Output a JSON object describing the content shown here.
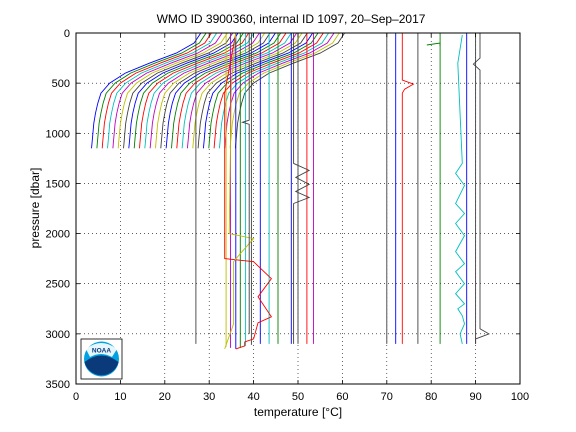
{
  "chart_data": {
    "type": "line",
    "title": "WMO ID 3900360, internal ID 1097, 20–Sep–2017",
    "xlabel": "temperature [°C]",
    "ylabel": "pressure [dbar]",
    "xlim": [
      0,
      100
    ],
    "ylim": [
      0,
      3500
    ],
    "y_reversed": true,
    "grid": true,
    "x_ticks": [
      "0",
      "10",
      "20",
      "30",
      "40",
      "50",
      "60",
      "70",
      "80",
      "90",
      "100"
    ],
    "y_ticks": [
      "0",
      "500",
      "1000",
      "1500",
      "2000",
      "2500",
      "3000",
      "3500"
    ],
    "logo_text": "NOAA",
    "curve_palette": [
      "#0000ff",
      "#008000",
      "#ff0000",
      "#00bfbf",
      "#bf00bf",
      "#bfbf00",
      "#404040"
    ],
    "shallow_profiles": {
      "count": 28,
      "start_offset": 3.5,
      "offset_step": 1.2,
      "shape_pressure": [
        0,
        100,
        200,
        300,
        400,
        500,
        600,
        700,
        800,
        900,
        1000,
        1100,
        1150
      ],
      "shape_temp": [
        28,
        26.5,
        22.5,
        16.5,
        11,
        7.5,
        5.5,
        4.8,
        4.3,
        3.9,
        3.7,
        3.5,
        3.4
      ]
    },
    "deep_profiles": [
      {
        "color": "#404040",
        "x": 27,
        "pmax": 3100
      },
      {
        "color": "#bfbf00",
        "x": 33.8,
        "pmax": 3130
      },
      {
        "color": "#bf00bf",
        "x": 34.8,
        "pmax": 3140
      },
      {
        "color": "#0000ff",
        "x": 36,
        "pmax": 3150
      },
      {
        "color": "#008000",
        "x": 37,
        "pmax": 3140
      },
      {
        "color": "#00bfbf",
        "x": 38.2,
        "pmax": 3120
      },
      {
        "color": "#404040",
        "x": 39.5,
        "pmax": 3110
      },
      {
        "color": "#0000ff",
        "x": 41.5,
        "pmax": 3100
      },
      {
        "color": "#00bfbf",
        "x": 43.5,
        "pmax": 3100
      },
      {
        "color": "#008000",
        "x": 45.5,
        "pmax": 3100
      },
      {
        "color": "#0000ff",
        "x": 48.5,
        "pmax": 3100
      },
      {
        "color": "#404040",
        "x": 50,
        "pmax": 3100
      },
      {
        "color": "#ff0000",
        "x": 52,
        "pmax": 3100
      },
      {
        "color": "#bf00bf",
        "x": 53.5,
        "pmax": 3100
      },
      {
        "color": "#404040",
        "x": 70,
        "pmax": 3100
      },
      {
        "color": "#0000ff",
        "x": 72,
        "pmax": 3100
      },
      {
        "color": "#404040",
        "x": 77,
        "pmax": 3100
      },
      {
        "color": "#008000",
        "x": 82,
        "pmax": 3100
      },
      {
        "color": "#0000ff",
        "x": 88,
        "pmax": 3100
      },
      {
        "color": "#404040",
        "x": 90,
        "pmax": 3100
      }
    ],
    "featured_profiles": [
      {
        "color": "#ff0000",
        "x": [
          36,
          33.5,
          33.5,
          40,
          44,
          41,
          44,
          41,
          40,
          38,
          38,
          36
        ],
        "p": [
          0,
          600,
          2250,
          2280,
          2450,
          2630,
          2830,
          2890,
          3050,
          3080,
          3120,
          3150
        ]
      },
      {
        "color": "#bfbf00",
        "x": [
          36,
          35,
          34.5,
          40,
          37,
          35.5,
          35.5,
          33.5
        ],
        "p": [
          0,
          500,
          2000,
          2050,
          2200,
          2280,
          2900,
          3150
        ]
      },
      {
        "color": "#404040",
        "x": [
          39,
          39,
          39,
          37.5,
          39,
          39
        ],
        "p": [
          0,
          850,
          870,
          890,
          910,
          3000
        ]
      },
      {
        "color": "#404040",
        "x": [
          49,
          49,
          52.5,
          49.5,
          52.5,
          49.5,
          52.5,
          49,
          49
        ],
        "p": [
          0,
          1300,
          1370,
          1440,
          1510,
          1580,
          1640,
          1700,
          3100
        ]
      },
      {
        "color": "#ff0000",
        "x": [
          73.5,
          73.5,
          76,
          74,
          73.5,
          73.5
        ],
        "p": [
          0,
          470,
          510,
          560,
          600,
          3100
        ]
      },
      {
        "color": "#00bfbf",
        "x": [
          87,
          86,
          87,
          85.5,
          87.5,
          85.5,
          87.5,
          85.5,
          87.5,
          85.5,
          87.5,
          85.5,
          87.5,
          85.5,
          87.5,
          86,
          87,
          87.5,
          86.5,
          87
        ],
        "p": [
          20,
          300,
          1300,
          1400,
          1520,
          1700,
          1800,
          1900,
          2020,
          2180,
          2300,
          2380,
          2500,
          2600,
          2700,
          2750,
          2820,
          2900,
          3000,
          3100
        ]
      },
      {
        "color": "#404040",
        "x": [
          91,
          91,
          89.5,
          91,
          91,
          93,
          90,
          90
        ],
        "p": [
          0,
          250,
          310,
          370,
          2950,
          3000,
          3050,
          3100
        ]
      },
      {
        "color": "#008000",
        "x": [
          79,
          82,
          82
        ],
        "p": [
          120,
          100,
          130
        ]
      }
    ]
  }
}
